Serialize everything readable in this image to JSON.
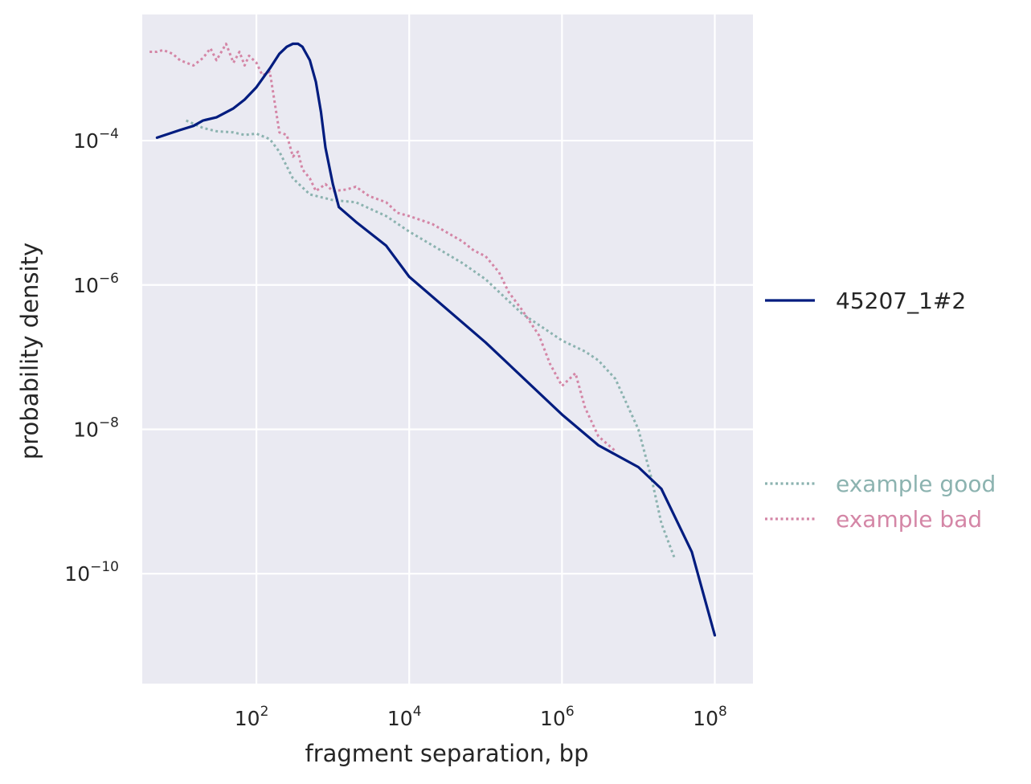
{
  "chart_data": {
    "type": "line",
    "xlabel": "fragment separation, bp",
    "ylabel": "probability density",
    "xscale": "log",
    "yscale": "log",
    "xlim": [
      3.2,
      316000000
    ],
    "ylim": [
      3e-12,
      0.0056
    ],
    "grid": true,
    "legend_placement": "right",
    "x_ticks": [
      {
        "base": "10",
        "exp": "2",
        "value": 100
      },
      {
        "base": "10",
        "exp": "4",
        "value": 10000
      },
      {
        "base": "10",
        "exp": "6",
        "value": 1000000
      },
      {
        "base": "10",
        "exp": "8",
        "value": 100000000
      }
    ],
    "y_ticks": [
      {
        "base": "10",
        "exp": "−4",
        "value": 0.0001
      },
      {
        "base": "10",
        "exp": "−6",
        "value": 1e-06
      },
      {
        "base": "10",
        "exp": "−8",
        "value": 1e-08
      },
      {
        "base": "10",
        "exp": "−10",
        "value": 1e-10
      }
    ],
    "series": [
      {
        "name": "45207_1#2",
        "color": "#001c7f",
        "style": "solid",
        "x": [
          5,
          10,
          15,
          20,
          30,
          50,
          70,
          100,
          150,
          200,
          250,
          300,
          350,
          400,
          500,
          600,
          700,
          800,
          1000,
          1200,
          2000,
          5000,
          10000,
          100000,
          1000000,
          3000000,
          10000000,
          20000000,
          50000000,
          100000000
        ],
        "y": [
          0.00011,
          0.00014,
          0.00016,
          0.00019,
          0.00021,
          0.00028,
          0.00037,
          0.00055,
          0.001,
          0.0016,
          0.002,
          0.0022,
          0.0022,
          0.002,
          0.0013,
          0.00065,
          0.00025,
          8e-05,
          2.5e-05,
          1.2e-05,
          7.5e-06,
          3.5e-06,
          1.3e-06,
          1.6e-07,
          1.6e-08,
          6e-09,
          3e-09,
          1.5e-09,
          2e-10,
          1.4e-11
        ]
      },
      {
        "name": "example good",
        "color": "#8cb3b0",
        "style": "dotted",
        "x": [
          12,
          20,
          30,
          50,
          70,
          100,
          150,
          200,
          300,
          500,
          1000,
          2000,
          5000,
          10000,
          50000,
          100000,
          300000,
          1000000,
          2000000,
          3000000,
          5000000,
          10000000,
          15000000,
          20000000,
          30000000
        ],
        "y": [
          0.00019,
          0.00015,
          0.000135,
          0.00013,
          0.00012,
          0.000125,
          0.000105,
          7e-05,
          3e-05,
          1.8e-05,
          1.5e-05,
          1.4e-05,
          9e-06,
          5.5e-06,
          2e-06,
          1.2e-06,
          4e-07,
          1.7e-07,
          1.2e-07,
          9e-08,
          5e-08,
          1e-08,
          2e-09,
          5e-10,
          1.6e-10
        ]
      },
      {
        "name": "example bad",
        "color": "#d486a6",
        "style": "dotted",
        "x": [
          4,
          5,
          6,
          8,
          10,
          15,
          20,
          25,
          30,
          40,
          50,
          60,
          70,
          80,
          100,
          120,
          150,
          200,
          250,
          300,
          350,
          400,
          500,
          600,
          800,
          1000,
          1500,
          2000,
          3000,
          5000,
          7000,
          10000,
          20000,
          50000,
          70000,
          100000,
          150000,
          200000,
          300000,
          500000,
          700000,
          1000000,
          1500000,
          2000000,
          3000000,
          5000000
        ],
        "y": [
          0.0017,
          0.0017,
          0.0018,
          0.0016,
          0.0013,
          0.0011,
          0.0014,
          0.0019,
          0.0013,
          0.0022,
          0.0012,
          0.0017,
          0.0011,
          0.0015,
          0.0012,
          0.0008,
          0.0009,
          0.00013,
          0.00012,
          6e-05,
          7e-05,
          4e-05,
          3e-05,
          2e-05,
          2.5e-05,
          2e-05,
          2.1e-05,
          2.3e-05,
          1.7e-05,
          1.4e-05,
          1e-05,
          9e-06,
          7e-06,
          4e-06,
          3e-06,
          2.5e-06,
          1.5e-06,
          8e-07,
          4.5e-07,
          2e-07,
          8e-08,
          4e-08,
          6e-08,
          2e-08,
          8e-09,
          5e-09
        ]
      }
    ]
  }
}
